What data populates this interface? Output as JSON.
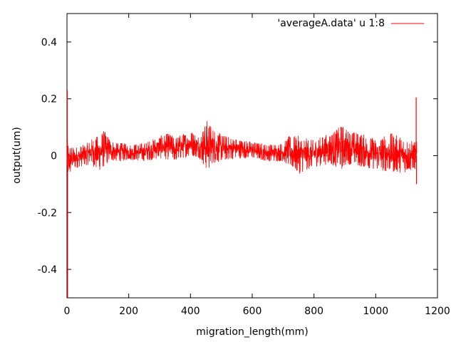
{
  "chart_data": {
    "type": "line",
    "title": "",
    "xlabel": "migration_length(mm)",
    "ylabel": "output(um)",
    "xlim": [
      0,
      1200
    ],
    "ylim": [
      -0.5,
      0.5
    ],
    "x_ticks": [
      0,
      200,
      400,
      600,
      800,
      1000,
      1200
    ],
    "x_tick_labels": [
      "0",
      "200",
      "400",
      "600",
      "800",
      "1000",
      "1200"
    ],
    "y_ticks": [
      -0.4,
      -0.2,
      0,
      0.2,
      0.4
    ],
    "y_tick_labels": [
      "-0.4",
      "-0.2",
      "0",
      "0.2",
      "0.4"
    ],
    "grid": false,
    "legend_position": "top-right",
    "series": [
      {
        "name": "'averageA.data' u 1:8",
        "color": "#ff0000",
        "x_range": [
          0,
          1133
        ],
        "envelope": {
          "x": [
            0,
            5,
            10,
            20,
            40,
            60,
            80,
            100,
            120,
            140,
            160,
            180,
            200,
            250,
            300,
            330,
            350,
            400,
            430,
            455,
            470,
            500,
            550,
            600,
            650,
            700,
            720,
            750,
            780,
            800,
            850,
            870,
            890,
            910,
            950,
            1000,
            1050,
            1100,
            1125,
            1133
          ],
          "upper": [
            0.06,
            0.05,
            0.04,
            0.03,
            0.035,
            0.04,
            0.06,
            0.07,
            0.09,
            0.06,
            0.045,
            0.045,
            0.04,
            0.045,
            0.07,
            0.08,
            0.065,
            0.09,
            0.07,
            0.13,
            0.1,
            0.075,
            0.06,
            0.05,
            0.04,
            0.045,
            0.07,
            0.07,
            0.06,
            0.055,
            0.08,
            0.09,
            0.11,
            0.09,
            0.08,
            0.06,
            0.08,
            0.06,
            0.05,
            0.05
          ],
          "lower": [
            -0.09,
            -0.1,
            -0.07,
            -0.05,
            -0.04,
            -0.035,
            -0.03,
            -0.06,
            -0.04,
            -0.02,
            -0.02,
            -0.02,
            -0.015,
            -0.02,
            -0.01,
            -0.015,
            -0.02,
            0.0,
            -0.01,
            -0.06,
            -0.03,
            -0.02,
            -0.01,
            -0.01,
            -0.02,
            -0.02,
            -0.04,
            -0.065,
            -0.05,
            -0.04,
            -0.03,
            -0.04,
            -0.05,
            -0.03,
            -0.04,
            -0.05,
            -0.06,
            -0.06,
            -0.05,
            -0.05
          ]
        },
        "spikes": [
          {
            "x": 1,
            "y": 0.23
          },
          {
            "x": 2,
            "y": -0.5
          },
          {
            "x": 1131,
            "y": 0.205
          },
          {
            "x": 1132,
            "y": -0.1
          }
        ]
      }
    ]
  }
}
